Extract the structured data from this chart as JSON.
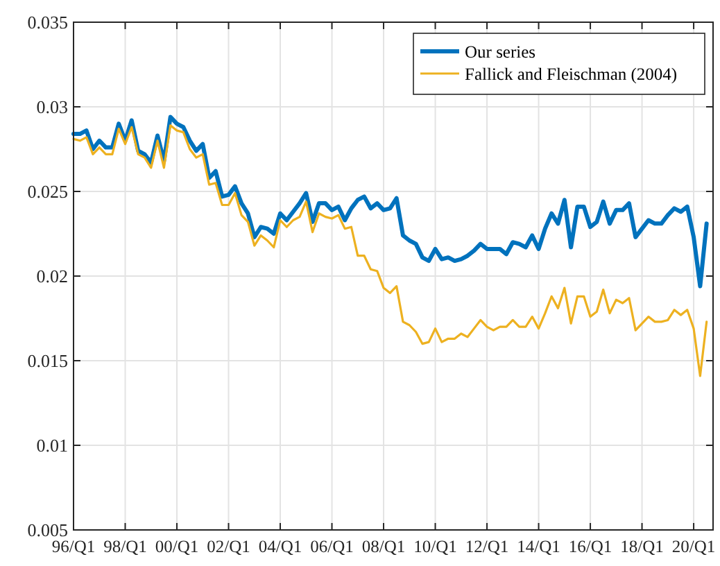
{
  "chart_data": {
    "type": "line",
    "categories": [
      "96/Q1",
      null,
      null,
      null,
      null,
      null,
      null,
      null,
      "98/Q1",
      null,
      null,
      null,
      null,
      null,
      null,
      null,
      "00/Q1",
      null,
      null,
      null,
      null,
      null,
      null,
      null,
      "02/Q1",
      null,
      null,
      null,
      null,
      null,
      null,
      null,
      "04/Q1",
      null,
      null,
      null,
      null,
      null,
      null,
      null,
      "06/Q1",
      null,
      null,
      null,
      null,
      null,
      null,
      null,
      "08/Q1",
      null,
      null,
      null,
      null,
      null,
      null,
      null,
      "10/Q1",
      null,
      null,
      null,
      null,
      null,
      null,
      null,
      "12/Q1",
      null,
      null,
      null,
      null,
      null,
      null,
      null,
      "14/Q1",
      null,
      null,
      null,
      null,
      null,
      null,
      null,
      "16/Q1",
      null,
      null,
      null,
      null,
      null,
      null,
      null,
      "18/Q1",
      null,
      null,
      null,
      null,
      null,
      null,
      null,
      "20/Q1",
      null,
      null
    ],
    "series": [
      {
        "name": "Our series",
        "color": "#0072bd",
        "values": [
          0.0284,
          0.0284,
          0.0286,
          0.0275,
          0.028,
          0.0276,
          0.0276,
          0.029,
          0.028,
          0.0292,
          0.0274,
          0.0272,
          0.0267,
          0.0283,
          0.0268,
          0.0294,
          0.029,
          0.0288,
          0.028,
          0.0274,
          0.0278,
          0.0258,
          0.0262,
          0.0247,
          0.0248,
          0.0253,
          0.0243,
          0.0237,
          0.0223,
          0.0229,
          0.0228,
          0.0225,
          0.0237,
          0.0233,
          0.0238,
          0.0243,
          0.0249,
          0.0232,
          0.0243,
          0.0243,
          0.0239,
          0.0241,
          0.0233,
          0.024,
          0.0245,
          0.0247,
          0.024,
          0.0243,
          0.0239,
          0.024,
          0.0246,
          0.0224,
          0.0221,
          0.0219,
          0.0211,
          0.0209,
          0.0216,
          0.021,
          0.0211,
          0.0209,
          0.021,
          0.0212,
          0.0215,
          0.0219,
          0.0216,
          0.0216,
          0.0216,
          0.0213,
          0.022,
          0.0219,
          0.0217,
          0.0224,
          0.0216,
          0.0228,
          0.0237,
          0.0231,
          0.0245,
          0.0217,
          0.0241,
          0.0241,
          0.0229,
          0.0232,
          0.0244,
          0.0231,
          0.0239,
          0.0239,
          0.0243,
          0.0223,
          0.0228,
          0.0233,
          0.0231,
          0.0231,
          0.0236,
          0.024,
          0.0238,
          0.0241,
          0.0223,
          0.0194,
          0.0231
        ]
      },
      {
        "name": "Fallick and Fleischman (2004)",
        "color": "#edb120",
        "values": [
          0.0281,
          0.028,
          0.0282,
          0.0272,
          0.0276,
          0.0272,
          0.0272,
          0.0287,
          0.0278,
          0.0288,
          0.0272,
          0.027,
          0.0264,
          0.028,
          0.0264,
          0.0289,
          0.0286,
          0.0285,
          0.0275,
          0.027,
          0.0272,
          0.0254,
          0.0255,
          0.0242,
          0.0242,
          0.0249,
          0.0236,
          0.0232,
          0.0218,
          0.0224,
          0.0221,
          0.0217,
          0.0233,
          0.0229,
          0.0233,
          0.0235,
          0.0244,
          0.0226,
          0.0237,
          0.0235,
          0.0234,
          0.0236,
          0.0228,
          0.0229,
          0.0212,
          0.0212,
          0.0204,
          0.0203,
          0.0193,
          0.019,
          0.0194,
          0.0173,
          0.0171,
          0.0167,
          0.016,
          0.0161,
          0.0169,
          0.0161,
          0.0163,
          0.0163,
          0.0166,
          0.0164,
          0.0169,
          0.0174,
          0.017,
          0.0168,
          0.017,
          0.017,
          0.0174,
          0.017,
          0.017,
          0.0176,
          0.0169,
          0.0178,
          0.0188,
          0.0181,
          0.0193,
          0.0172,
          0.0188,
          0.0188,
          0.0176,
          0.0179,
          0.0192,
          0.0178,
          0.0186,
          0.0184,
          0.0187,
          0.0168,
          0.0172,
          0.0176,
          0.0173,
          0.0173,
          0.0174,
          0.018,
          0.0177,
          0.018,
          0.0169,
          0.0141,
          0.0173
        ]
      }
    ],
    "ylim": [
      0.005,
      0.035
    ],
    "yticks": [
      0.005,
      0.01,
      0.015,
      0.02,
      0.025,
      0.03,
      0.035
    ],
    "grid": true,
    "legend": "top right"
  }
}
